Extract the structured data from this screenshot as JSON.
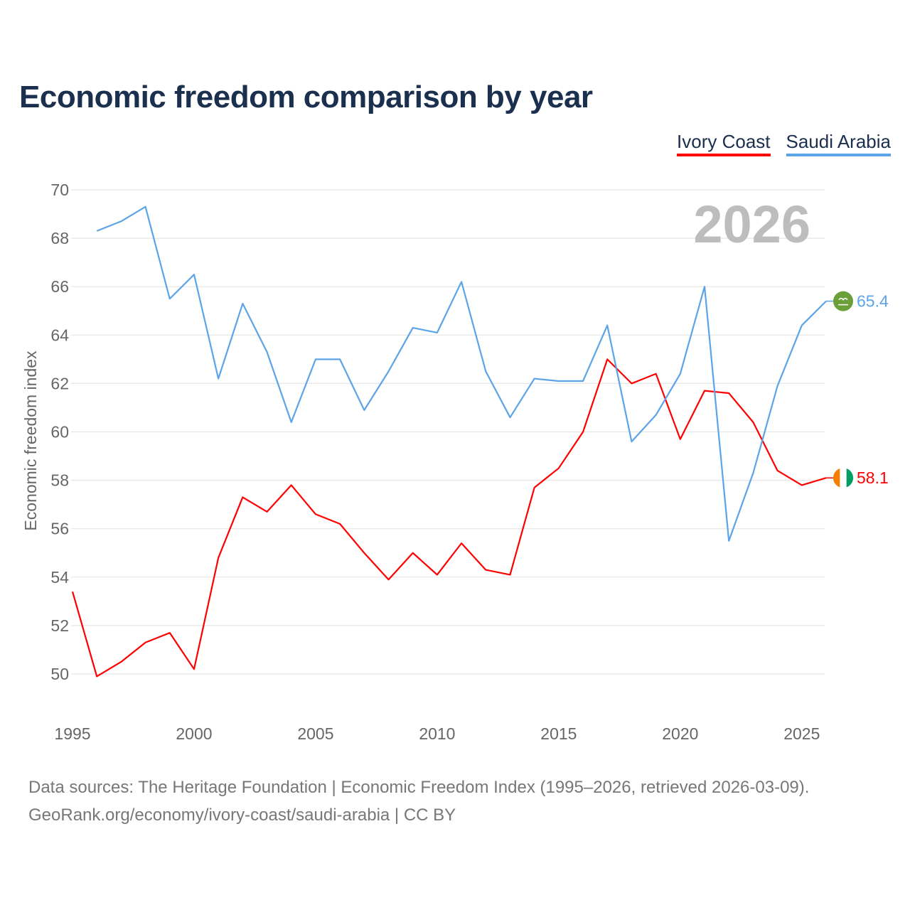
{
  "title": "Economic freedom comparison by year",
  "footer": {
    "line1": "Data sources: The Heritage Foundation | Economic Freedom Index (1995–2026, retrieved 2026-03-09).",
    "line2": "GeoRank.org/economy/ivory-coast/saudi-arabia | CC BY"
  },
  "chart_data": {
    "type": "line",
    "title": "Economic freedom comparison by year",
    "ylabel": "Economic freedom index",
    "xlabel": "",
    "xlim": [
      1995,
      2026
    ],
    "ylim": [
      50,
      70
    ],
    "yticks": [
      50,
      52,
      54,
      56,
      58,
      60,
      62,
      64,
      66,
      68,
      70
    ],
    "xticks": [
      1995,
      2000,
      2005,
      2010,
      2015,
      2020,
      2025
    ],
    "grid": true,
    "legend_position": "top-right",
    "year_annotation": "2026",
    "series": [
      {
        "name": "Ivory Coast",
        "color": "#ff0000",
        "end_label": "58.1",
        "x": [
          1995,
          1996,
          1997,
          1998,
          1999,
          2000,
          2001,
          2002,
          2003,
          2004,
          2005,
          2006,
          2007,
          2008,
          2009,
          2010,
          2011,
          2012,
          2013,
          2014,
          2015,
          2016,
          2017,
          2018,
          2019,
          2020,
          2021,
          2022,
          2023,
          2024,
          2025,
          2026
        ],
        "values": [
          53.4,
          49.9,
          50.5,
          51.3,
          51.7,
          50.2,
          54.8,
          57.3,
          56.7,
          57.8,
          56.6,
          56.2,
          55.0,
          53.9,
          55.0,
          54.1,
          55.4,
          54.3,
          54.1,
          57.7,
          58.5,
          60.0,
          63.0,
          62.0,
          62.4,
          59.7,
          61.7,
          61.6,
          60.4,
          58.4,
          57.8,
          58.1
        ]
      },
      {
        "name": "Saudi Arabia",
        "color": "#5ba4e8",
        "end_label": "65.4",
        "x": [
          1996,
          1997,
          1998,
          1999,
          2000,
          2001,
          2002,
          2003,
          2004,
          2005,
          2006,
          2007,
          2008,
          2009,
          2010,
          2011,
          2012,
          2013,
          2014,
          2015,
          2016,
          2017,
          2018,
          2019,
          2020,
          2021,
          2022,
          2023,
          2024,
          2025,
          2026
        ],
        "values": [
          68.3,
          68.7,
          69.3,
          65.5,
          66.5,
          62.2,
          65.3,
          63.3,
          60.4,
          63.0,
          63.0,
          60.9,
          62.5,
          64.3,
          64.1,
          66.2,
          62.5,
          60.6,
          62.2,
          62.1,
          62.1,
          64.4,
          59.6,
          60.7,
          62.4,
          66.0,
          55.5,
          58.3,
          61.9,
          64.4,
          65.4
        ]
      }
    ]
  }
}
